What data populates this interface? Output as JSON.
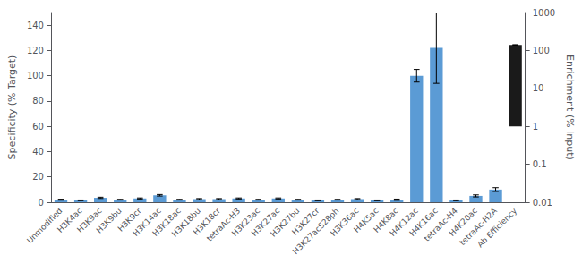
{
  "chart_data": {
    "type": "bar",
    "categories": [
      "Unmodified",
      "H3K4ac",
      "H3K9ac",
      "H3K9bu",
      "H3K9cr",
      "H3K14ac",
      "H3K18ac",
      "H3K18bu",
      "H3K18cr",
      "tetraAc-H3",
      "H3K23ac",
      "H3K27ac",
      "H3K27bu",
      "H3K27cr",
      "H3K27acS28ph",
      "H3K36ac",
      "H4K5ac",
      "H4K8ac",
      "H4K12ac",
      "H4K16ac",
      "tetraAc-H4",
      "H4K20ac",
      "tetraAc-H2A",
      "Ab Efficiency"
    ],
    "series": [
      {
        "color": "#5b9bd5",
        "values": [
          2.0,
          1.5,
          3.5,
          2.0,
          3.0,
          5.5,
          2.0,
          2.5,
          2.5,
          3.0,
          2.0,
          3.0,
          2.0,
          1.5,
          2.0,
          2.5,
          1.5,
          2.0,
          100.0,
          122.0,
          1.5,
          5.0,
          10.0,
          null
        ],
        "errors": [
          0.4,
          0.3,
          0.5,
          0.3,
          0.4,
          0.6,
          0.3,
          0.4,
          0.4,
          0.4,
          0.3,
          0.4,
          0.3,
          0.3,
          0.3,
          0.4,
          0.3,
          0.5,
          5.0,
          28.0,
          0.3,
          0.8,
          1.5,
          null
        ]
      },
      {
        "color": "#1a1a1a",
        "axis": "y2",
        "values": [
          null,
          null,
          null,
          null,
          null,
          null,
          null,
          null,
          null,
          null,
          null,
          null,
          null,
          null,
          null,
          null,
          null,
          null,
          null,
          null,
          null,
          null,
          null,
          140.0
        ],
        "errors": [
          null,
          null,
          null,
          null,
          null,
          null,
          null,
          null,
          null,
          null,
          null,
          null,
          null,
          null,
          null,
          null,
          null,
          null,
          null,
          null,
          null,
          null,
          null,
          2.0
        ]
      }
    ],
    "ylabel": "Specificity (% Target)",
    "y2label": "Enrichment (% Input)",
    "ylim": [
      0,
      150
    ],
    "yticks": [
      0,
      20,
      40,
      60,
      80,
      100,
      120,
      140
    ],
    "y2lim": [
      0.01,
      1000
    ],
    "y2ticks": [
      0.01,
      0.1,
      1,
      10,
      100,
      1000
    ],
    "log": "y2",
    "grid": false
  }
}
